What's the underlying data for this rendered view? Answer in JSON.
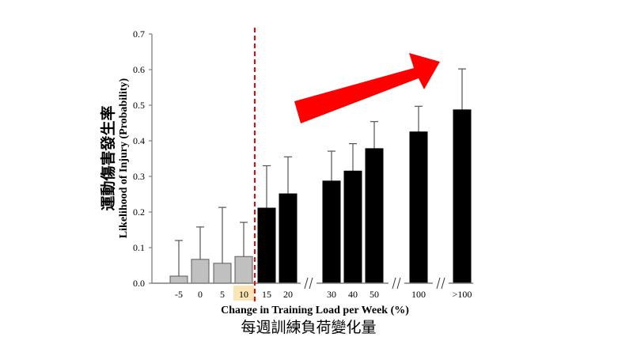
{
  "chart_data": {
    "type": "bar",
    "title": "",
    "xlabel": "Change in Training Load per Week (%)",
    "xlabel_zh": "每週訓練負荷變化量",
    "ylabel": "Likelihood of Injury (Probability)",
    "ylabel_zh": "運動傷害發生率",
    "ylim": [
      0,
      0.7
    ],
    "yticks": [
      "0.0",
      "0.1",
      "0.2",
      "0.3",
      "0.4",
      "0.5",
      "0.6",
      "0.7"
    ],
    "grid": false,
    "legend": null,
    "categories": [
      "-5",
      "0",
      "5",
      "10",
      "15",
      "20",
      "30",
      "40",
      "50",
      "100",
      ">100"
    ],
    "values": [
      0.02,
      0.067,
      0.056,
      0.075,
      0.211,
      0.251,
      0.287,
      0.315,
      0.378,
      0.425,
      0.487
    ],
    "error_upper": [
      0.12,
      0.158,
      0.213,
      0.171,
      0.33,
      0.355,
      0.371,
      0.392,
      0.454,
      0.497,
      0.602
    ],
    "bar_colors": [
      "#c0c0c0",
      "#c0c0c0",
      "#c0c0c0",
      "#c0c0c0",
      "#000000",
      "#000000",
      "#000000",
      "#000000",
      "#000000",
      "#000000",
      "#000000"
    ],
    "highlighted_category": "10",
    "highlight_color": "#fbe5b6",
    "axis_breaks_after": [
      "20",
      "50",
      "100"
    ],
    "annotations": [
      {
        "type": "threshold-line",
        "between": [
          "10",
          "15"
        ],
        "style": "dashed",
        "color": "#ff0000"
      },
      {
        "type": "trend-arrow",
        "direction": "up-right",
        "color": "#ff0000"
      }
    ]
  }
}
